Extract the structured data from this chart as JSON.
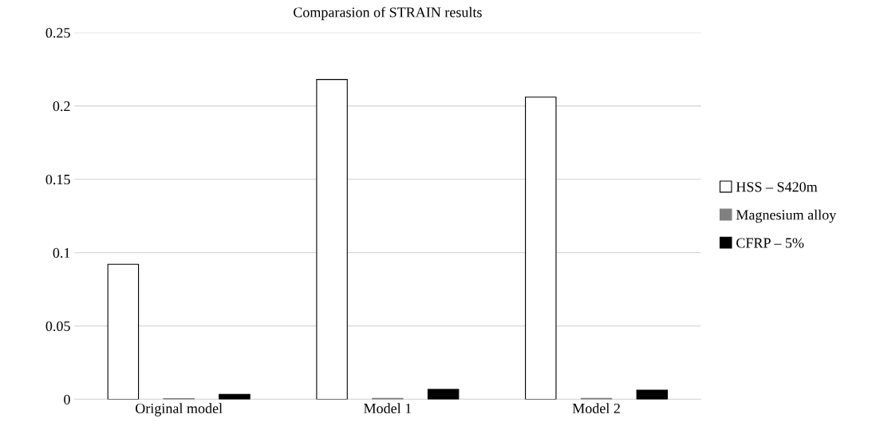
{
  "chart_data": {
    "type": "bar",
    "title": "Comparasion of STRAIN results",
    "categories": [
      "Original model",
      "Model 1",
      "Model 2"
    ],
    "series": [
      {
        "name": "HSS – S420m",
        "color": "#ffffff",
        "values": [
          0.092,
          0.218,
          0.206
        ]
      },
      {
        "name": "Magnesium alloy",
        "color": "#808080",
        "values": [
          0.0005,
          0.0006,
          0.0006
        ]
      },
      {
        "name": "CFRP – 5%",
        "color": "#000000",
        "values": [
          0.0034,
          0.0068,
          0.0062
        ]
      }
    ],
    "ylim": [
      0,
      0.25
    ],
    "yticks": [
      {
        "value": 0,
        "label": "0"
      },
      0.05,
      0.1,
      0.15,
      0.2,
      0.25
    ],
    "grid": "y",
    "legend": "right"
  }
}
